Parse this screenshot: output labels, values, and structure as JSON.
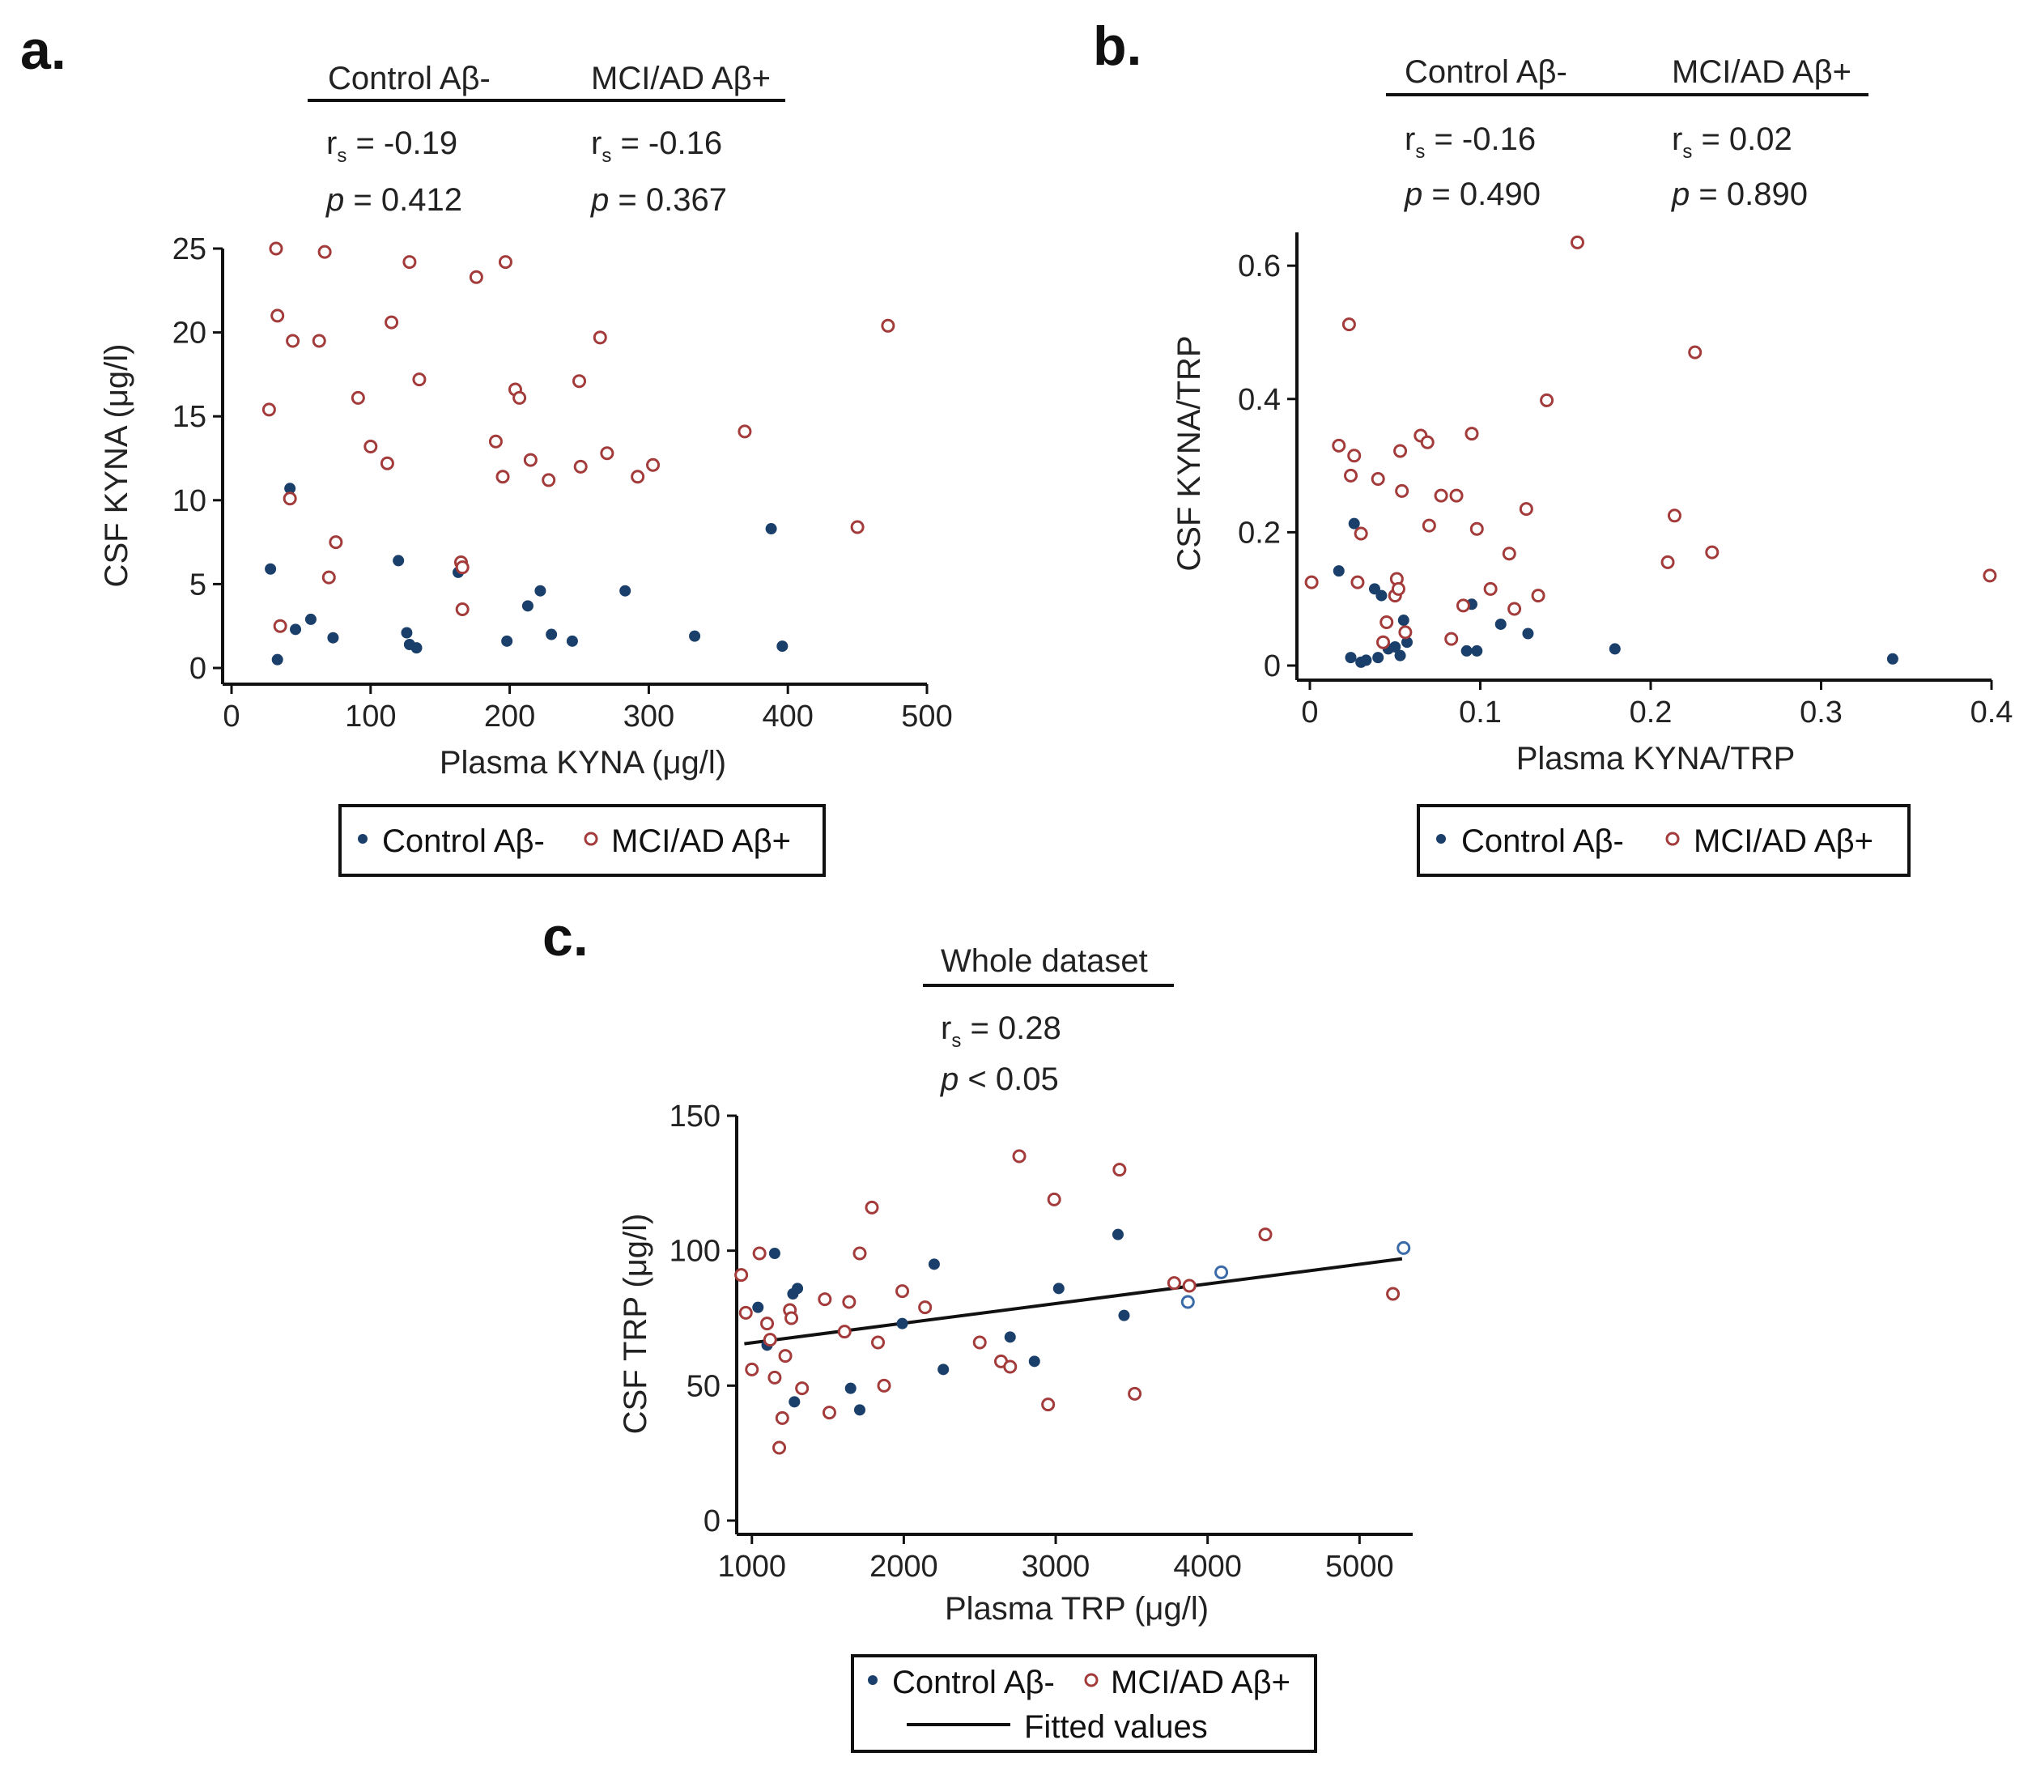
{
  "colors": {
    "control": "#1b3f6b",
    "mci": "#a33b3b",
    "axis": "#111111",
    "fit": "#111111"
  },
  "chart_data": [
    {
      "panel": "a.",
      "type": "scatter",
      "xlabel": "Plasma KYNA (μg/l)",
      "ylabel": "CSF KYNA (μg/l)",
      "xlim": [
        0,
        500
      ],
      "ylim": [
        0,
        25
      ],
      "xticks": [
        0,
        100,
        200,
        300,
        400,
        500
      ],
      "yticks": [
        0,
        5,
        10,
        15,
        20,
        25
      ],
      "xtick_labels": [
        "0",
        "100",
        "200",
        "300",
        "400",
        "500"
      ],
      "ytick_labels": [
        "0",
        "5",
        "10",
        "15",
        "20",
        "25"
      ],
      "stat_headers": [
        "Control Aβ-",
        "MCI/AD Aβ+"
      ],
      "stats": [
        {
          "rs_prefix": "r",
          "rs_sub": "s",
          "rs_value": " = -0.19",
          "p_prefix": "p",
          "p_value": " = 0.412"
        },
        {
          "rs_prefix": "r",
          "rs_sub": "s",
          "rs_value": " = -0.16",
          "p_prefix": "p",
          "p_value": " = 0.367"
        }
      ],
      "legend": [
        "Control Aβ-",
        "MCI/AD Aβ+"
      ],
      "series": [
        {
          "name": "Control Aβ-",
          "marker": "filled",
          "x": [
            28,
            33,
            42,
            46,
            57,
            73,
            120,
            126,
            128,
            133,
            163,
            198,
            213,
            222,
            230,
            245,
            283,
            333,
            388,
            396
          ],
          "y": [
            5.9,
            0.5,
            10.7,
            2.3,
            2.9,
            1.8,
            6.4,
            2.1,
            1.4,
            1.2,
            5.7,
            1.6,
            3.7,
            4.6,
            2.0,
            1.6,
            4.6,
            1.9,
            8.3,
            1.3
          ]
        },
        {
          "name": "MCI/AD Aβ+",
          "marker": "open",
          "x": [
            27,
            32,
            33,
            35,
            42,
            44,
            63,
            67,
            70,
            75,
            91,
            100,
            112,
            115,
            128,
            135,
            165,
            166,
            166,
            176,
            190,
            195,
            197,
            204,
            207,
            215,
            228,
            250,
            251,
            265,
            270,
            292,
            303,
            369,
            450,
            472
          ],
          "y": [
            15.4,
            25.0,
            21.0,
            2.5,
            10.1,
            19.5,
            19.5,
            24.8,
            5.4,
            7.5,
            16.1,
            13.2,
            12.2,
            20.6,
            24.2,
            17.2,
            6.3,
            6.0,
            3.5,
            23.3,
            13.5,
            11.4,
            24.2,
            16.6,
            16.1,
            12.4,
            11.2,
            17.1,
            12.0,
            19.7,
            12.8,
            11.4,
            12.1,
            14.1,
            8.4,
            20.4
          ]
        }
      ]
    },
    {
      "panel": "b.",
      "type": "scatter",
      "xlabel": "Plasma KYNA/TRP",
      "ylabel": "CSF KYNA/TRP",
      "xlim": [
        0,
        0.4
      ],
      "ylim": [
        0,
        0.65
      ],
      "xticks": [
        0,
        0.1,
        0.2,
        0.3,
        0.4
      ],
      "yticks": [
        0,
        0.2,
        0.4,
        0.6
      ],
      "xtick_labels": [
        "0",
        "0.1",
        "0.2",
        "0.3",
        "0.4"
      ],
      "ytick_labels": [
        "0",
        "0.2",
        "0.4",
        "0.6"
      ],
      "stat_headers": [
        "Control Aβ-",
        "MCI/AD Aβ+"
      ],
      "stats": [
        {
          "rs_prefix": "r",
          "rs_sub": "s",
          "rs_value": " = -0.16",
          "p_prefix": "p",
          "p_value": " = 0.490"
        },
        {
          "rs_prefix": "r",
          "rs_sub": "s",
          "rs_value": " = 0.02",
          "p_prefix": "p",
          "p_value": " = 0.890"
        }
      ],
      "legend": [
        "Control Aβ-",
        "MCI/AD Aβ+"
      ],
      "series": [
        {
          "name": "Control Aβ-",
          "marker": "filled",
          "x": [
            0.017,
            0.024,
            0.026,
            0.03,
            0.033,
            0.038,
            0.04,
            0.042,
            0.046,
            0.05,
            0.053,
            0.055,
            0.057,
            0.092,
            0.095,
            0.098,
            0.112,
            0.128,
            0.179,
            0.342
          ],
          "y": [
            0.142,
            0.012,
            0.213,
            0.005,
            0.008,
            0.115,
            0.012,
            0.105,
            0.025,
            0.028,
            0.015,
            0.068,
            0.035,
            0.022,
            0.092,
            0.022,
            0.062,
            0.048,
            0.025,
            0.01
          ]
        },
        {
          "name": "MCI/AD Aβ+",
          "marker": "open",
          "x": [
            0.001,
            0.017,
            0.023,
            0.024,
            0.026,
            0.028,
            0.03,
            0.04,
            0.043,
            0.045,
            0.05,
            0.051,
            0.052,
            0.053,
            0.054,
            0.056,
            0.065,
            0.069,
            0.07,
            0.077,
            0.083,
            0.086,
            0.09,
            0.095,
            0.098,
            0.106,
            0.117,
            0.12,
            0.127,
            0.134,
            0.139,
            0.157,
            0.21,
            0.214,
            0.226,
            0.236,
            0.399
          ],
          "y": [
            0.125,
            0.33,
            0.512,
            0.285,
            0.315,
            0.125,
            0.198,
            0.28,
            0.035,
            0.065,
            0.105,
            0.13,
            0.115,
            0.322,
            0.262,
            0.05,
            0.345,
            0.335,
            0.21,
            0.255,
            0.04,
            0.255,
            0.09,
            0.348,
            0.205,
            0.115,
            0.168,
            0.085,
            0.235,
            0.105,
            0.398,
            0.635,
            0.155,
            0.225,
            0.47,
            0.17,
            0.135
          ]
        }
      ]
    },
    {
      "panel": "c.",
      "type": "scatter",
      "xlabel": "Plasma TRP (μg/l)",
      "ylabel": "CSF TRP  (μg/l)",
      "xlim": [
        900,
        5350
      ],
      "ylim": [
        0,
        150
      ],
      "xticks": [
        1000,
        2000,
        3000,
        4000,
        5000
      ],
      "yticks": [
        0,
        50,
        100,
        150
      ],
      "xtick_labels": [
        "1000",
        "2000",
        "3000",
        "4000",
        "5000"
      ],
      "ytick_labels": [
        "0",
        "50",
        "100",
        "150"
      ],
      "stat_headers": [
        "Whole dataset"
      ],
      "stats": [
        {
          "rs_prefix": "r",
          "rs_sub": "s",
          "rs_value": " = 0.28",
          "p_prefix": "p",
          "p_value": " < 0.05"
        }
      ],
      "legend": [
        "Control Aβ-",
        "MCI/AD Aβ+",
        "Fitted values"
      ],
      "fit": {
        "x": [
          950,
          5280
        ],
        "y": [
          65.5,
          97.0
        ]
      },
      "series": [
        {
          "name": "Control Aβ-",
          "marker": "filled",
          "x": [
            1040,
            1100,
            1150,
            1270,
            1300,
            1280,
            1650,
            1710,
            1990,
            2200,
            2260,
            2700,
            2860,
            3020,
            3410,
            3450
          ],
          "y": [
            79,
            65,
            99,
            84,
            86,
            44,
            49,
            41,
            73,
            95,
            56,
            68,
            59,
            86,
            106,
            76
          ]
        },
        {
          "name": "MCI/AD Aβ+",
          "marker": "open",
          "x": [
            930,
            960,
            1000,
            1050,
            1100,
            1120,
            1150,
            1180,
            1200,
            1220,
            1250,
            1260,
            1330,
            1480,
            1510,
            1610,
            1640,
            1710,
            1790,
            1830,
            1870,
            1990,
            2140,
            2500,
            2640,
            2700,
            2760,
            2950,
            2990,
            3420,
            3520,
            3780,
            3880,
            4380,
            5220
          ],
          "y": [
            91,
            77,
            56,
            99,
            73,
            67,
            53,
            27,
            38,
            61,
            78,
            75,
            49,
            82,
            40,
            70,
            81,
            99,
            116,
            66,
            50,
            85,
            79,
            66,
            59,
            57,
            135,
            43,
            119,
            130,
            47,
            88,
            87,
            106,
            84
          ]
        },
        {
          "name": "Control Aβ- (open)",
          "marker": "open-blue",
          "x": [
            3870,
            4090,
            5290
          ],
          "y": [
            81,
            92,
            101
          ]
        }
      ]
    }
  ]
}
